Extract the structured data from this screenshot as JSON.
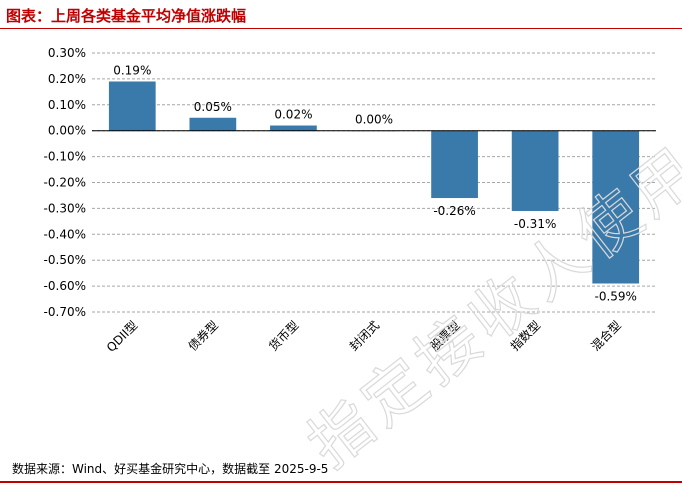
{
  "header": {
    "title": "图表：上周各类基金平均净值涨跌幅"
  },
  "footer": {
    "source": "数据来源：Wind、好买基金研究中心，数据截至 2025-9-5"
  },
  "watermark": {
    "text": "指定接收人使用"
  },
  "chart_data": {
    "type": "bar",
    "title": "",
    "xlabel": "",
    "ylabel": "",
    "categories": [
      "QDII型",
      "债券型",
      "货币型",
      "封闭式",
      "股票型",
      "指数型",
      "混合型"
    ],
    "values": [
      0.19,
      0.05,
      0.02,
      0.0,
      -0.26,
      -0.31,
      -0.59
    ],
    "data_labels": [
      "0.19%",
      "0.05%",
      "0.02%",
      "0.00%",
      "-0.26%",
      "-0.31%",
      "-0.59%"
    ],
    "ylim": [
      -0.7,
      0.3
    ],
    "yticks": [
      0.3,
      0.2,
      0.1,
      0.0,
      -0.1,
      -0.2,
      -0.3,
      -0.4,
      -0.5,
      -0.6,
      -0.7
    ],
    "ytick_labels": [
      "0.30%",
      "0.20%",
      "0.10%",
      "0.00%",
      "-0.10%",
      "-0.20%",
      "-0.30%",
      "-0.40%",
      "-0.50%",
      "-0.60%",
      "-0.70%"
    ],
    "grid": true,
    "bar_color": "#3a7aab",
    "grid_color": "#a6a6a6"
  }
}
